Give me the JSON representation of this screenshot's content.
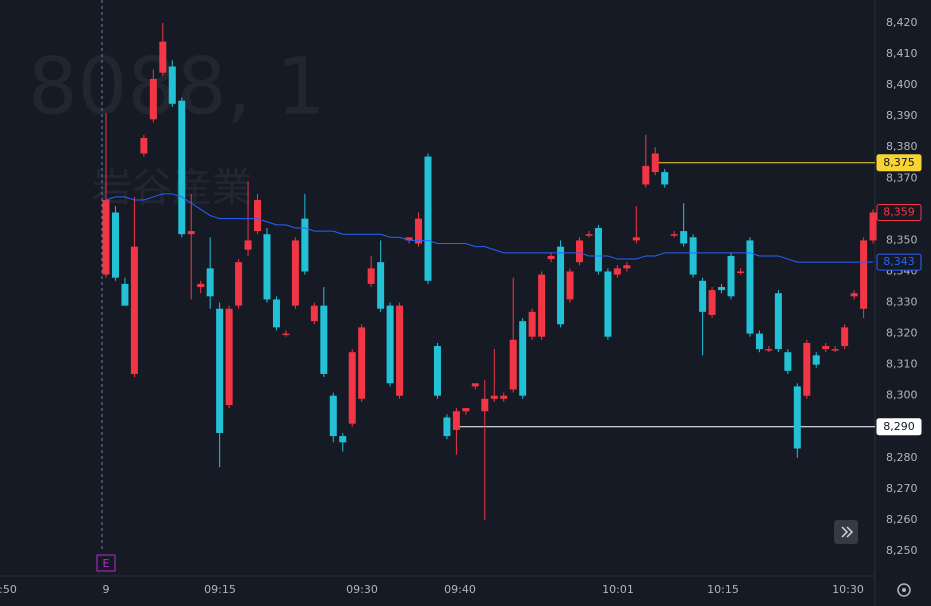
{
  "chart_data": {
    "type": "candlestick",
    "watermark": {
      "symbol": "8088, 1",
      "name": "岩谷産業"
    },
    "up_color": "#f23645",
    "down_color": "#22c1d6",
    "line_color": "#2962ff",
    "ylim": [
      8250,
      8420
    ],
    "yticks": [
      {
        "value": 8250,
        "label": "8,250"
      },
      {
        "value": 8260,
        "label": "8,260"
      },
      {
        "value": 8270,
        "label": "8,270"
      },
      {
        "value": 8280,
        "label": "8,280"
      },
      {
        "value": 8290,
        "label": "8,290"
      },
      {
        "value": 8300,
        "label": "8,300"
      },
      {
        "value": 8310,
        "label": "8,310"
      },
      {
        "value": 8320,
        "label": "8,320"
      },
      {
        "value": 8330,
        "label": "8,330"
      },
      {
        "value": 8340,
        "label": "8,340"
      },
      {
        "value": 8350,
        "label": "8,350"
      },
      {
        "value": 8360,
        "label": "8,360"
      },
      {
        "value": 8370,
        "label": "8,370"
      },
      {
        "value": 8380,
        "label": "8,380"
      },
      {
        "value": 8390,
        "label": "8,390"
      },
      {
        "value": 8400,
        "label": "8,400"
      },
      {
        "value": 8410,
        "label": "8,410"
      },
      {
        "value": 8420,
        "label": "8,420"
      }
    ],
    "grid": false,
    "time_axis": [
      ":50",
      "9",
      "09:15",
      "09:30",
      "09:40",
      "10:01",
      "10:15",
      "10:30"
    ],
    "event_marker": "E",
    "open": [
      8339,
      8359,
      8336,
      8307,
      8378,
      8389,
      8404,
      8406,
      8395,
      8352,
      8335,
      8341,
      8328,
      8297,
      8329,
      8347,
      8353,
      8352,
      8331,
      8320,
      8329,
      8357,
      8324,
      8329,
      8300,
      8287,
      8291,
      8299,
      8336,
      8343,
      8329,
      8300,
      8350,
      8349,
      8377,
      8316,
      8293,
      8289,
      8295,
      8303,
      8295,
      8299,
      8299,
      8302,
      8324,
      8319,
      8319,
      8344,
      8348,
      8331,
      8343,
      8352,
      8354,
      8340,
      8339,
      8341,
      8350,
      8368,
      8372,
      8372,
      8352,
      8353,
      8351,
      8337,
      8326,
      8335,
      8345,
      8340,
      8350,
      8320,
      8315,
      8333,
      8314,
      8303,
      8300,
      8313,
      8315,
      8315,
      8316,
      8332,
      8328,
      8350
    ],
    "high": [
      8391,
      8361,
      8338,
      8364,
      8384,
      8405,
      8420,
      8408,
      8396,
      8365,
      8337,
      8351,
      8330,
      8329,
      8344,
      8369,
      8365,
      8354,
      8332,
      8321,
      8351,
      8365,
      8330,
      8335,
      8301,
      8288,
      8315,
      8323,
      8345,
      8350,
      8330,
      8330,
      8351,
      8359,
      8378,
      8317,
      8294,
      8296,
      8296,
      8304,
      8305,
      8315,
      8301,
      8338,
      8325,
      8328,
      8340,
      8346,
      8350,
      8341,
      8351,
      8353,
      8355,
      8341,
      8342,
      8343,
      8361,
      8384,
      8380,
      8373,
      8353,
      8362,
      8352,
      8338,
      8335,
      8336,
      8346,
      8341,
      8351,
      8321,
      8316,
      8334,
      8315,
      8304,
      8318,
      8314,
      8317,
      8316,
      8323,
      8334,
      8351,
      8360
    ],
    "low": [
      8338,
      8337,
      8329,
      8306,
      8377,
      8388,
      8403,
      8393,
      8351,
      8331,
      8333,
      8328,
      8277,
      8296,
      8328,
      8345,
      8352,
      8330,
      8321,
      8319,
      8328,
      8339,
      8323,
      8306,
      8285,
      8282,
      8290,
      8298,
      8335,
      8327,
      8303,
      8299,
      8349,
      8348,
      8336,
      8299,
      8286,
      8281,
      8294,
      8302,
      8260,
      8298,
      8298,
      8301,
      8299,
      8318,
      8318,
      8343,
      8322,
      8330,
      8342,
      8351,
      8339,
      8318,
      8338,
      8340,
      8349,
      8367,
      8371,
      8367,
      8351,
      8348,
      8338,
      8313,
      8325,
      8333,
      8331,
      8339,
      8319,
      8314,
      8314,
      8314,
      8307,
      8280,
      8299,
      8309,
      8314,
      8314,
      8315,
      8331,
      8325,
      8349
    ],
    "close": [
      8363,
      8338,
      8329,
      8348,
      8383,
      8402,
      8414,
      8394,
      8352,
      8353,
      8336,
      8332,
      8288,
      8328,
      8343,
      8350,
      8363,
      8331,
      8322,
      8320,
      8350,
      8340,
      8329,
      8307,
      8287,
      8285,
      8314,
      8322,
      8341,
      8328,
      8304,
      8329,
      8351,
      8357,
      8337,
      8300,
      8287,
      8295,
      8296,
      8304,
      8299,
      8300,
      8300,
      8318,
      8300,
      8327,
      8339,
      8345,
      8323,
      8340,
      8350,
      8352,
      8340,
      8319,
      8341,
      8342,
      8351,
      8374,
      8378,
      8368,
      8352,
      8349,
      8339,
      8327,
      8334,
      8334,
      8332,
      8340,
      8320,
      8315,
      8315,
      8315,
      8308,
      8283,
      8317,
      8310,
      8316,
      8315,
      8322,
      8333,
      8350,
      8359
    ],
    "line": [
      8363,
      8364,
      8364,
      8363,
      8363,
      8364,
      8365,
      8365,
      8364,
      8362,
      8360,
      8358,
      8357,
      8357,
      8357,
      8357,
      8357,
      8356,
      8355,
      8355,
      8354,
      8354,
      8353,
      8353,
      8353,
      8352,
      8352,
      8352,
      8352,
      8352,
      8351,
      8351,
      8350,
      8350,
      8350,
      8349,
      8349,
      8349,
      8349,
      8348,
      8348,
      8347,
      8346,
      8346,
      8346,
      8346,
      8346,
      8346,
      8346,
      8346,
      8346,
      8345,
      8345,
      8345,
      8344,
      8344,
      8344,
      8345,
      8345,
      8346,
      8346,
      8346,
      8346,
      8346,
      8346,
      8346,
      8346,
      8346,
      8346,
      8345,
      8345,
      8345,
      8344,
      8343,
      8343,
      8343,
      8343,
      8343,
      8343,
      8343,
      8343,
      8343
    ],
    "price_labels": [
      {
        "value": 8375,
        "label": "8,375",
        "color": "#f7d433",
        "style": "filled"
      },
      {
        "value": 8359,
        "label": "8,359",
        "color": "#f23645",
        "style": "outline"
      },
      {
        "value": 8343,
        "label": "8,343",
        "color": "#2962ff",
        "style": "outline"
      },
      {
        "value": 8290,
        "label": "8,290",
        "color": "#ffffff",
        "style": "filled"
      }
    ]
  }
}
